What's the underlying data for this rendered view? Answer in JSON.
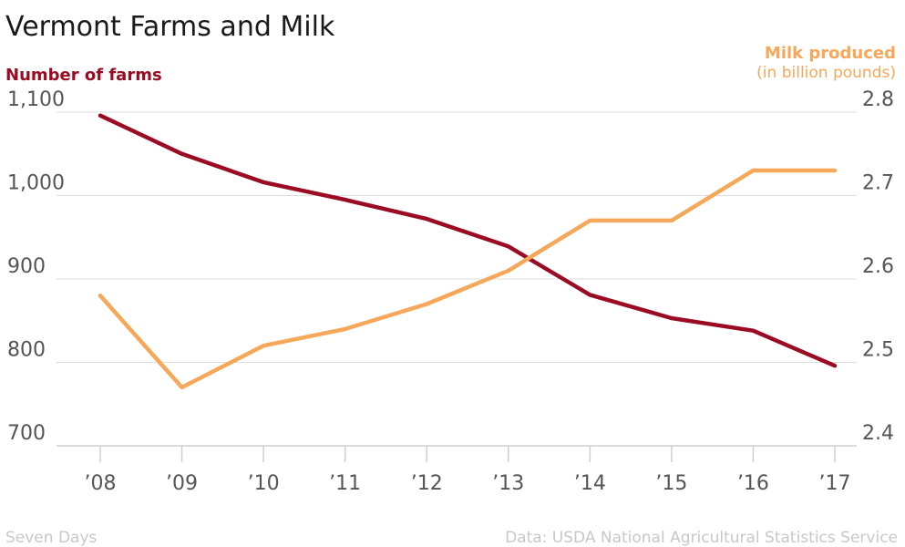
{
  "chart_data": {
    "type": "line",
    "title": "Vermont Farms and Milk",
    "categories": [
      "’08",
      "’09",
      "’10",
      "’11",
      "’12",
      "’13",
      "’14",
      "’15",
      "’16",
      "’17"
    ],
    "y_left": {
      "label": "Number of farms",
      "range": [
        700,
        1100
      ],
      "ticks": [
        700,
        800,
        900,
        1000,
        1100
      ],
      "tick_labels": [
        "700",
        "800",
        "900",
        "1,000",
        "1,100"
      ]
    },
    "y_right": {
      "label": "Milk produced",
      "sublabel": "(in billion pounds)",
      "range": [
        2.4,
        2.8
      ],
      "ticks": [
        2.4,
        2.5,
        2.6,
        2.7,
        2.8
      ],
      "tick_labels": [
        "2.4",
        "2.5",
        "2.6",
        "2.7",
        "2.8"
      ]
    },
    "series": [
      {
        "name": "Number of farms",
        "axis": "left",
        "color": "#9b0b23",
        "values": [
          1096,
          1050,
          1016,
          995,
          972,
          939,
          881,
          853,
          838,
          796
        ]
      },
      {
        "name": "Milk produced",
        "axis": "right",
        "color": "#f7a75a",
        "values": [
          2.58,
          2.47,
          2.52,
          2.54,
          2.57,
          2.61,
          2.67,
          2.67,
          2.73,
          2.73
        ]
      }
    ],
    "grid": true
  },
  "footer": {
    "source_left": "Seven Days",
    "source_right": "Data: USDA National Agricultural Statistics Service"
  }
}
